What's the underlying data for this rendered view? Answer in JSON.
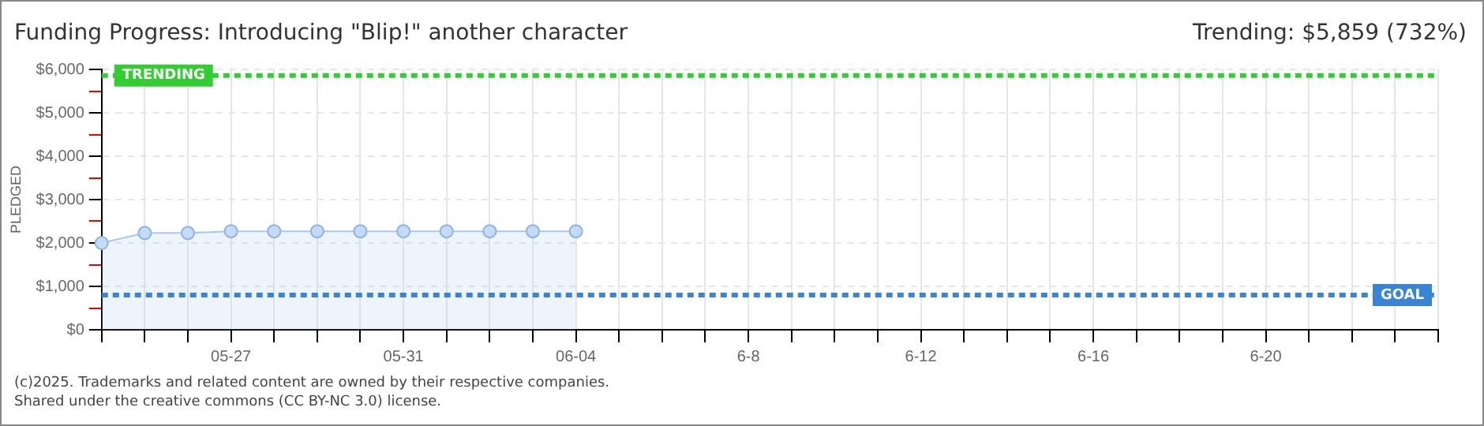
{
  "chart_data": {
    "type": "area",
    "title": "Funding Progress: Introducing \"Blip!\" another character",
    "ylabel": "PLEDGED",
    "annotations": [
      "Trending:  $5,859 (732%)",
      "(c)2025. Trademarks and related content are owned by their respective companies.",
      "Shared under the creative commons (CC BY-NC 3.0) license."
    ],
    "categories": [
      null,
      null,
      null,
      "05-27",
      null,
      null,
      null,
      "05-31",
      null,
      null,
      null,
      "06-04",
      null,
      null,
      null,
      "6-8",
      null,
      null,
      null,
      "6-12",
      null,
      null,
      null,
      "6-16",
      null,
      null,
      null,
      "6-20",
      null,
      null,
      null,
      null
    ],
    "series": [
      {
        "color": "#a9c8f0",
        "values": [
          2000,
          2230,
          2230,
          2270,
          2270,
          2270,
          2270,
          2270,
          2270,
          2270,
          2270,
          2270,
          null,
          null,
          null,
          null,
          null,
          null,
          null,
          null,
          null,
          null,
          null,
          null,
          null,
          null,
          null,
          null,
          null,
          null,
          null,
          null
        ]
      }
    ],
    "ylim": [
      0,
      6000
    ],
    "yticks": [
      {
        "value": 0,
        "label": "$0"
      },
      {
        "value": 500,
        "label": null
      },
      {
        "value": 1000,
        "label": "$1,000"
      },
      {
        "value": 1500,
        "label": null
      },
      {
        "value": 2000,
        "label": "$2,000"
      },
      {
        "value": 2500,
        "label": null
      },
      {
        "value": 3000,
        "label": "$3,000"
      },
      {
        "value": 3500,
        "label": null
      },
      {
        "value": 4000,
        "label": "$4,000"
      },
      {
        "value": 4500,
        "label": null
      },
      {
        "value": 5000,
        "label": "$5,000"
      },
      {
        "value": 5500,
        "label": null
      },
      {
        "value": 6000,
        "label": "$6,000"
      }
    ],
    "ref_lines": [
      {
        "axis": "y",
        "value": 5859,
        "label": "TRENDING",
        "color": "#33cc33",
        "line_style": "dashed"
      },
      {
        "axis": "y",
        "value": 800,
        "label": "GOAL",
        "color": "#3a84d6",
        "line_style": "dashed"
      }
    ],
    "grid": true,
    "legend": false,
    "marker": "circle"
  }
}
